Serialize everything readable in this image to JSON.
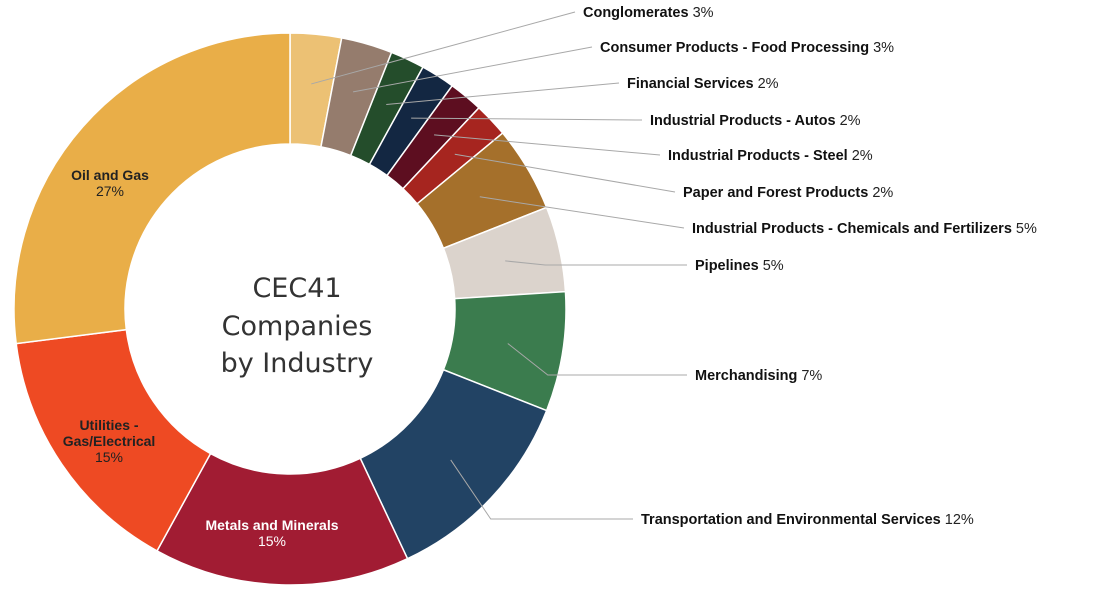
{
  "chart_data": {
    "type": "pie",
    "title": "CEC41 Companies by Industry",
    "title_lines": [
      "CEC41",
      "Companies",
      "by Industry"
    ],
    "slices": [
      {
        "name": "Conglomerates",
        "value": 3,
        "label": "3%",
        "color": "#ecc174",
        "label_position": "outside"
      },
      {
        "name": "Consumer Products - Food Processing",
        "value": 3,
        "label": "3%",
        "color": "#957c6d",
        "label_position": "outside"
      },
      {
        "name": "Financial Services",
        "value": 2,
        "label": "2%",
        "color": "#244d2b",
        "label_position": "outside"
      },
      {
        "name": "Industrial Products - Autos",
        "value": 2,
        "label": "2%",
        "color": "#132742",
        "label_position": "outside"
      },
      {
        "name": "Industrial Products - Steel",
        "value": 2,
        "label": "2%",
        "color": "#5d0e20",
        "label_position": "outside"
      },
      {
        "name": "Paper and Forest Products",
        "value": 2,
        "label": "2%",
        "color": "#a6251f",
        "label_position": "outside"
      },
      {
        "name": "Industrial Products - Chemicals and Fertilizers",
        "value": 5,
        "label": "5%",
        "color": "#a5702b",
        "label_position": "outside"
      },
      {
        "name": "Pipelines",
        "value": 5,
        "label": "5%",
        "color": "#dbd3cc",
        "label_position": "outside"
      },
      {
        "name": "Merchandising",
        "value": 7,
        "label": "7%",
        "color": "#3b7c4e",
        "label_position": "outside"
      },
      {
        "name": "Transportation and Environmental Services",
        "value": 12,
        "label": "12%",
        "color": "#224364",
        "label_position": "outside"
      },
      {
        "name": "Metals and Minerals",
        "value": 15,
        "label": "15%",
        "color": "#a11c33",
        "label_position": "inside",
        "name_lines": [
          "Metals and Minerals"
        ],
        "text_color": "#ffffff"
      },
      {
        "name": "Utilities - Gas/Electrical",
        "value": 15,
        "label": "15%",
        "color": "#ee4a23",
        "label_position": "inside",
        "name_lines": [
          "Utilities -",
          "Gas/Electrical"
        ],
        "text_color": "#222222"
      },
      {
        "name": "Oil and Gas",
        "value": 27,
        "label": "27%",
        "color": "#e9ae48",
        "label_position": "inside",
        "name_lines": [
          "Oil and Gas"
        ],
        "text_color": "#222222"
      }
    ],
    "legend": "none"
  }
}
